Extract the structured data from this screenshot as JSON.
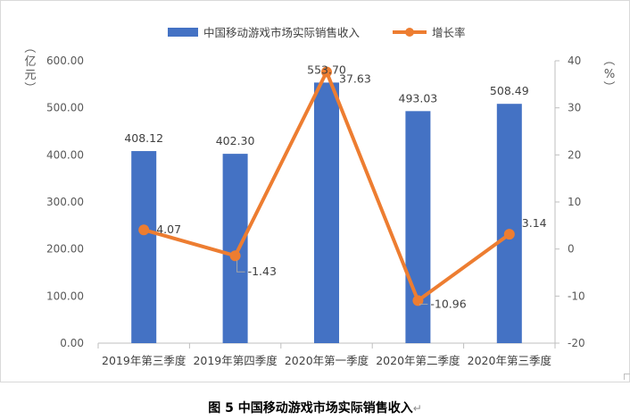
{
  "chart_data": {
    "type": "bar",
    "categories": [
      "2019年第三季度",
      "2019年第四季度",
      "2020年第一季度",
      "2020年第二季度",
      "2020年第三季度"
    ],
    "series": [
      {
        "name": "中国移动游戏市场实际销售收入",
        "type": "bar",
        "axis": "left",
        "color": "#4472c4",
        "values": [
          408.12,
          402.3,
          553.7,
          493.03,
          508.49
        ],
        "labels": [
          "408.12",
          "402.30",
          "553.70",
          "493.03",
          "508.49"
        ]
      },
      {
        "name": "增长率",
        "type": "line",
        "axis": "right",
        "color": "#ed7d31",
        "values": [
          4.07,
          -1.43,
          37.63,
          -10.96,
          3.14
        ],
        "labels": [
          "4.07",
          "-1.43",
          "37.63",
          "-10.96",
          "3.14"
        ]
      }
    ],
    "y_left": {
      "unit_label": "（亿元）",
      "ylim": [
        0,
        600
      ],
      "ticks": [
        "0.00",
        "100.00",
        "200.00",
        "300.00",
        "400.00",
        "500.00",
        "600.00"
      ]
    },
    "y_right": {
      "unit_label": "（%）",
      "ylim": [
        -20,
        40
      ],
      "ticks": [
        "-20",
        "-10",
        "0",
        "10",
        "20",
        "30",
        "40"
      ]
    },
    "legend_position": "top-center",
    "grid": false
  },
  "caption": {
    "text": "图 5  中国移动游戏市场实际销售收入",
    "return_mark": "↵"
  }
}
